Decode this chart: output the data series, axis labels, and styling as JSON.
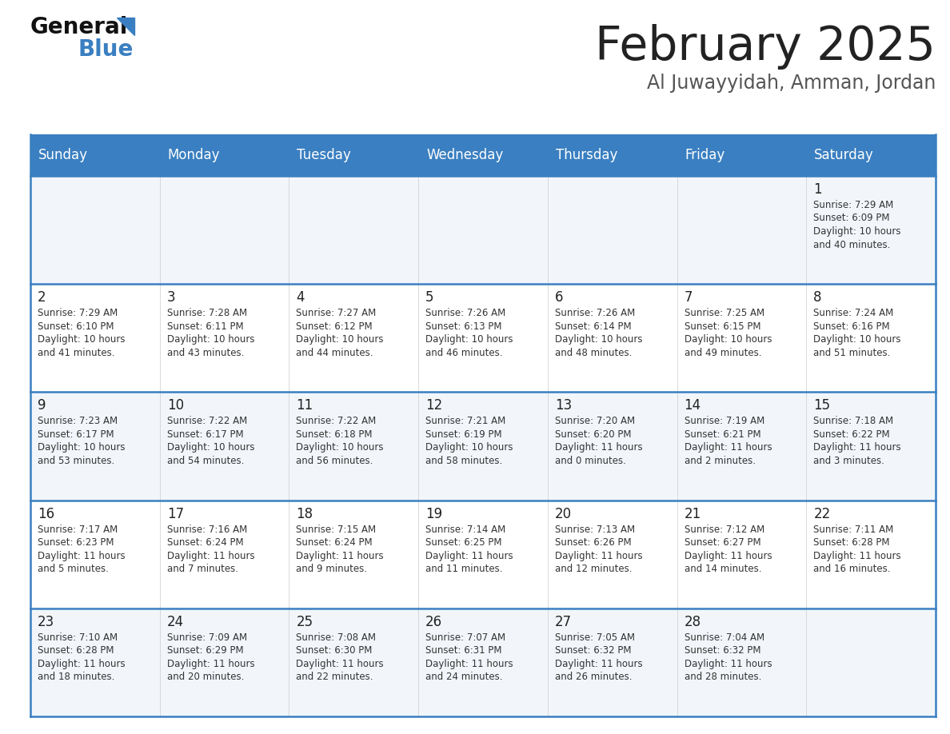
{
  "title": "February 2025",
  "subtitle": "Al Juwayyidah, Amman, Jordan",
  "days_of_week": [
    "Sunday",
    "Monday",
    "Tuesday",
    "Wednesday",
    "Thursday",
    "Friday",
    "Saturday"
  ],
  "header_bg": "#3a7fc1",
  "header_text": "#ffffff",
  "row_bg": [
    "#f2f6fb",
    "#ffffff",
    "#f2f6fb",
    "#ffffff",
    "#f2f6fb"
  ],
  "border_color": "#3a7fc1",
  "text_color": "#222222",
  "info_color": "#333333",
  "calendar": [
    [
      null,
      null,
      null,
      null,
      null,
      null,
      {
        "day": "1",
        "sunrise": "7:29 AM",
        "sunset": "6:09 PM",
        "daylight_h": "10 hours",
        "daylight_m": "and 40 minutes."
      }
    ],
    [
      {
        "day": "2",
        "sunrise": "7:29 AM",
        "sunset": "6:10 PM",
        "daylight_h": "10 hours",
        "daylight_m": "and 41 minutes."
      },
      {
        "day": "3",
        "sunrise": "7:28 AM",
        "sunset": "6:11 PM",
        "daylight_h": "10 hours",
        "daylight_m": "and 43 minutes."
      },
      {
        "day": "4",
        "sunrise": "7:27 AM",
        "sunset": "6:12 PM",
        "daylight_h": "10 hours",
        "daylight_m": "and 44 minutes."
      },
      {
        "day": "5",
        "sunrise": "7:26 AM",
        "sunset": "6:13 PM",
        "daylight_h": "10 hours",
        "daylight_m": "and 46 minutes."
      },
      {
        "day": "6",
        "sunrise": "7:26 AM",
        "sunset": "6:14 PM",
        "daylight_h": "10 hours",
        "daylight_m": "and 48 minutes."
      },
      {
        "day": "7",
        "sunrise": "7:25 AM",
        "sunset": "6:15 PM",
        "daylight_h": "10 hours",
        "daylight_m": "and 49 minutes."
      },
      {
        "day": "8",
        "sunrise": "7:24 AM",
        "sunset": "6:16 PM",
        "daylight_h": "10 hours",
        "daylight_m": "and 51 minutes."
      }
    ],
    [
      {
        "day": "9",
        "sunrise": "7:23 AM",
        "sunset": "6:17 PM",
        "daylight_h": "10 hours",
        "daylight_m": "and 53 minutes."
      },
      {
        "day": "10",
        "sunrise": "7:22 AM",
        "sunset": "6:17 PM",
        "daylight_h": "10 hours",
        "daylight_m": "and 54 minutes."
      },
      {
        "day": "11",
        "sunrise": "7:22 AM",
        "sunset": "6:18 PM",
        "daylight_h": "10 hours",
        "daylight_m": "and 56 minutes."
      },
      {
        "day": "12",
        "sunrise": "7:21 AM",
        "sunset": "6:19 PM",
        "daylight_h": "10 hours",
        "daylight_m": "and 58 minutes."
      },
      {
        "day": "13",
        "sunrise": "7:20 AM",
        "sunset": "6:20 PM",
        "daylight_h": "11 hours",
        "daylight_m": "and 0 minutes."
      },
      {
        "day": "14",
        "sunrise": "7:19 AM",
        "sunset": "6:21 PM",
        "daylight_h": "11 hours",
        "daylight_m": "and 2 minutes."
      },
      {
        "day": "15",
        "sunrise": "7:18 AM",
        "sunset": "6:22 PM",
        "daylight_h": "11 hours",
        "daylight_m": "and 3 minutes."
      }
    ],
    [
      {
        "day": "16",
        "sunrise": "7:17 AM",
        "sunset": "6:23 PM",
        "daylight_h": "11 hours",
        "daylight_m": "and 5 minutes."
      },
      {
        "day": "17",
        "sunrise": "7:16 AM",
        "sunset": "6:24 PM",
        "daylight_h": "11 hours",
        "daylight_m": "and 7 minutes."
      },
      {
        "day": "18",
        "sunrise": "7:15 AM",
        "sunset": "6:24 PM",
        "daylight_h": "11 hours",
        "daylight_m": "and 9 minutes."
      },
      {
        "day": "19",
        "sunrise": "7:14 AM",
        "sunset": "6:25 PM",
        "daylight_h": "11 hours",
        "daylight_m": "and 11 minutes."
      },
      {
        "day": "20",
        "sunrise": "7:13 AM",
        "sunset": "6:26 PM",
        "daylight_h": "11 hours",
        "daylight_m": "and 12 minutes."
      },
      {
        "day": "21",
        "sunrise": "7:12 AM",
        "sunset": "6:27 PM",
        "daylight_h": "11 hours",
        "daylight_m": "and 14 minutes."
      },
      {
        "day": "22",
        "sunrise": "7:11 AM",
        "sunset": "6:28 PM",
        "daylight_h": "11 hours",
        "daylight_m": "and 16 minutes."
      }
    ],
    [
      {
        "day": "23",
        "sunrise": "7:10 AM",
        "sunset": "6:28 PM",
        "daylight_h": "11 hours",
        "daylight_m": "and 18 minutes."
      },
      {
        "day": "24",
        "sunrise": "7:09 AM",
        "sunset": "6:29 PM",
        "daylight_h": "11 hours",
        "daylight_m": "and 20 minutes."
      },
      {
        "day": "25",
        "sunrise": "7:08 AM",
        "sunset": "6:30 PM",
        "daylight_h": "11 hours",
        "daylight_m": "and 22 minutes."
      },
      {
        "day": "26",
        "sunrise": "7:07 AM",
        "sunset": "6:31 PM",
        "daylight_h": "11 hours",
        "daylight_m": "and 24 minutes."
      },
      {
        "day": "27",
        "sunrise": "7:05 AM",
        "sunset": "6:32 PM",
        "daylight_h": "11 hours",
        "daylight_m": "and 26 minutes."
      },
      {
        "day": "28",
        "sunrise": "7:04 AM",
        "sunset": "6:32 PM",
        "daylight_h": "11 hours",
        "daylight_m": "and 28 minutes."
      },
      null
    ]
  ]
}
